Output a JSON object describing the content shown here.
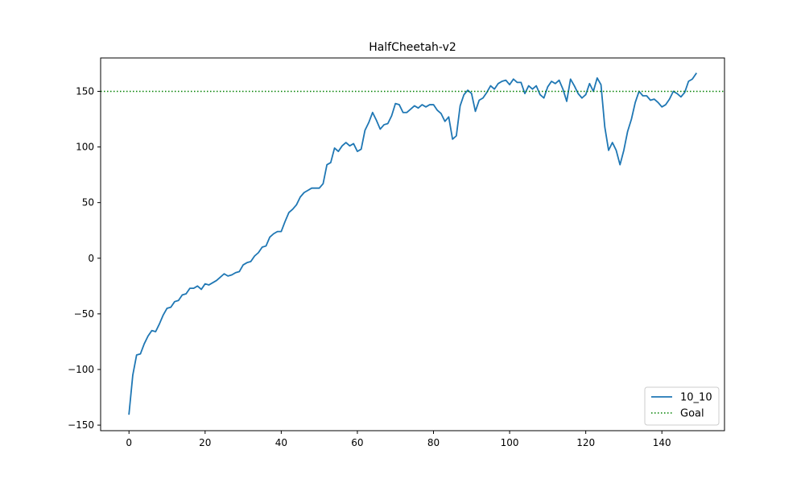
{
  "chart_data": {
    "type": "line",
    "title": "HalfCheetah-v2",
    "xlabel": "",
    "ylabel": "",
    "xlim": [
      -7.45,
      156.45
    ],
    "ylim": [
      -155,
      180
    ],
    "xticks": [
      0,
      20,
      40,
      60,
      80,
      100,
      120,
      140
    ],
    "yticks": [
      -150,
      -100,
      -50,
      0,
      50,
      100,
      150
    ],
    "ytick_labels": [
      "−150",
      "−100",
      "−50",
      "0",
      "50",
      "100",
      "150"
    ],
    "grid": false,
    "legend_position": "lower-right",
    "series": [
      {
        "name": "10_10",
        "color": "#1f77b4",
        "style": "solid",
        "x": [
          0,
          1,
          2,
          3,
          4,
          5,
          6,
          7,
          8,
          9,
          10,
          11,
          12,
          13,
          14,
          15,
          16,
          17,
          18,
          19,
          20,
          21,
          22,
          23,
          24,
          25,
          26,
          27,
          28,
          29,
          30,
          31,
          32,
          33,
          34,
          35,
          36,
          37,
          38,
          39,
          40,
          41,
          42,
          43,
          44,
          45,
          46,
          47,
          48,
          49,
          50,
          51,
          52,
          53,
          54,
          55,
          56,
          57,
          58,
          59,
          60,
          61,
          62,
          63,
          64,
          65,
          66,
          67,
          68,
          69,
          70,
          71,
          72,
          73,
          74,
          75,
          76,
          77,
          78,
          79,
          80,
          81,
          82,
          83,
          84,
          85,
          86,
          87,
          88,
          89,
          90,
          91,
          92,
          93,
          94,
          95,
          96,
          97,
          98,
          99,
          100,
          101,
          102,
          103,
          104,
          105,
          106,
          107,
          108,
          109,
          110,
          111,
          112,
          113,
          114,
          115,
          116,
          117,
          118,
          119,
          120,
          121,
          122,
          123,
          124,
          125,
          126,
          127,
          128,
          129,
          130,
          131,
          132,
          133,
          134,
          135,
          136,
          137,
          138,
          139,
          140,
          141,
          142,
          143,
          144,
          145,
          146,
          147,
          148,
          149
        ],
        "values": [
          -140,
          -105,
          -87,
          -86,
          -77,
          -70,
          -65,
          -66,
          -59,
          -51,
          -45,
          -44,
          -39,
          -38,
          -33,
          -32,
          -27,
          -27,
          -25,
          -28,
          -23,
          -24,
          -22,
          -20,
          -17,
          -14,
          -16,
          -15,
          -13,
          -12,
          -6,
          -4,
          -3,
          2,
          5,
          10,
          11,
          19,
          22,
          24,
          24,
          33,
          41,
          44,
          48,
          55,
          59,
          61,
          63,
          63,
          63,
          67,
          84,
          86,
          99,
          96,
          101,
          104,
          101,
          103,
          96,
          98,
          115,
          122,
          131,
          124,
          116,
          120,
          121,
          128,
          139,
          138,
          131,
          131,
          134,
          137,
          135,
          138,
          136,
          138,
          138,
          133,
          130,
          123,
          127,
          107,
          110,
          137,
          147,
          151,
          148,
          132,
          142,
          144,
          149,
          155,
          152,
          157,
          159,
          160,
          156,
          161,
          158,
          158,
          148,
          155,
          152,
          155,
          147,
          144,
          154,
          159,
          157,
          160,
          152,
          141,
          161,
          155,
          148,
          144,
          147,
          157,
          150,
          162,
          156,
          118,
          97,
          104,
          97,
          84,
          97,
          114,
          125,
          140,
          150,
          146,
          146,
          142,
          143,
          140,
          136,
          138,
          143,
          150,
          148,
          145,
          149,
          159,
          161,
          166
        ]
      },
      {
        "name": "Goal",
        "color": "#008000",
        "style": "dotted",
        "hline": 150
      }
    ]
  }
}
